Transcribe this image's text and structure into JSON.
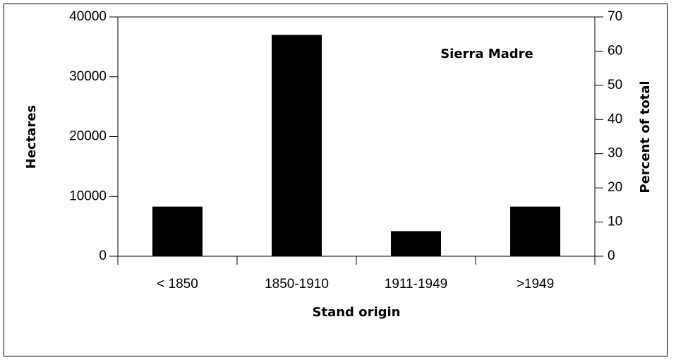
{
  "chart_data": {
    "type": "bar",
    "annotation": "Sierra Madre",
    "ylabel": "Hectares",
    "y2label": "Percent of total",
    "xlabel": "Stand origin",
    "categories": [
      "< 1850",
      "1850-1910",
      "1911-1949",
      ">1949"
    ],
    "values": [
      8300,
      37000,
      4200,
      8300
    ],
    "color": "#000000",
    "ylim": [
      0,
      40000
    ],
    "yticks": [
      0,
      10000,
      20000,
      30000,
      40000
    ],
    "y2lim": [
      0,
      70
    ],
    "y2ticks": [
      0,
      10,
      20,
      30,
      40,
      50,
      60,
      70
    ],
    "grid": false
  }
}
